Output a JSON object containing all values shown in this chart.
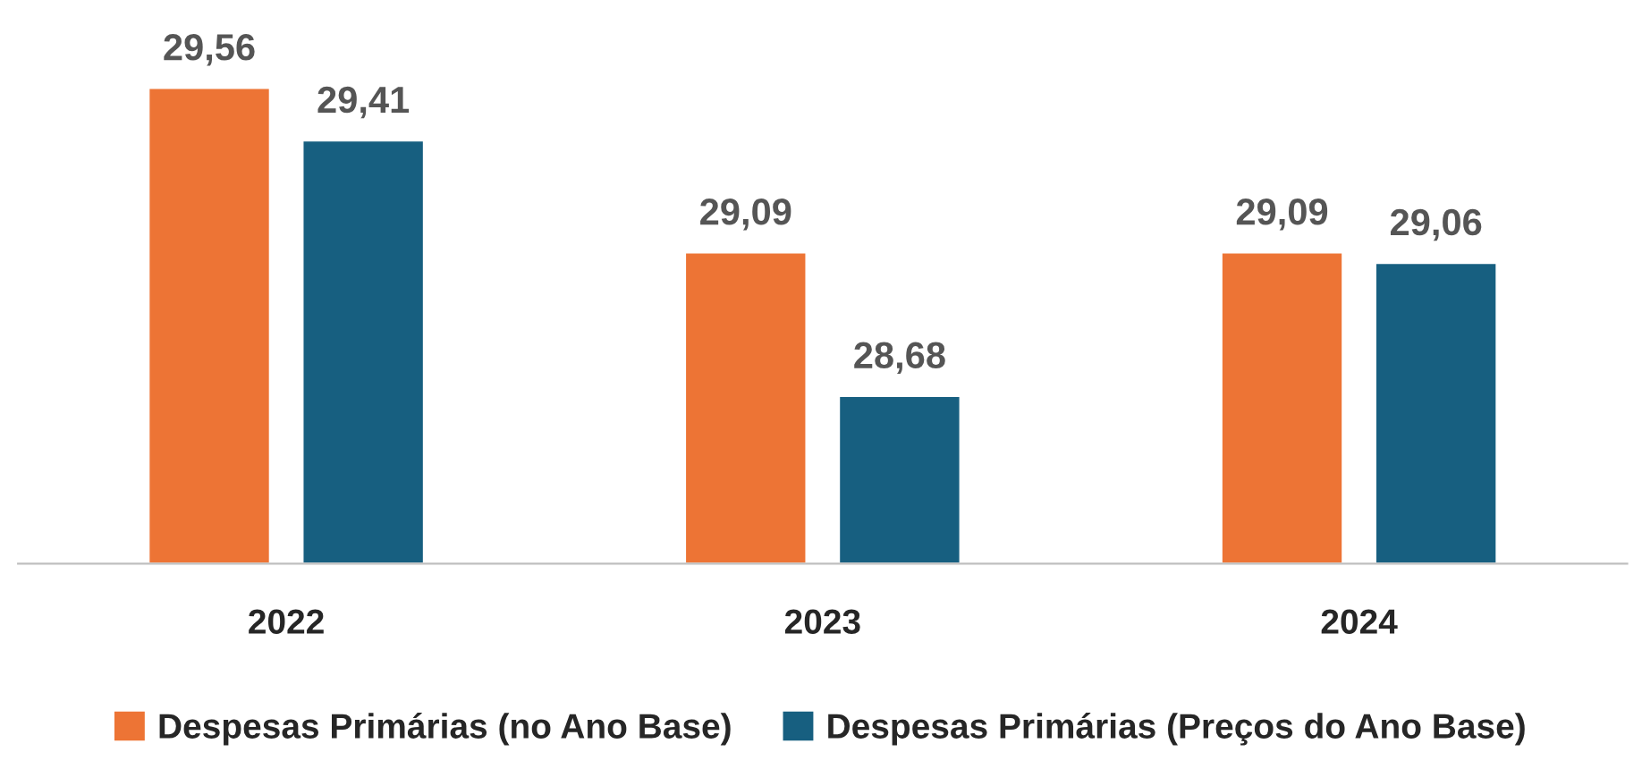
{
  "chart_data": {
    "type": "bar",
    "categories": [
      "2022",
      "2023",
      "2024"
    ],
    "series": [
      {
        "name": "Despesas Primárias (no Ano Base)",
        "color": "#ed7435",
        "values": [
          29.56,
          29.09,
          29.09
        ],
        "value_labels": [
          "29,56",
          "29,09",
          "29,09"
        ]
      },
      {
        "name": "Despesas Primárias (Preços do Ano Base)",
        "color": "#175f80",
        "values": [
          29.41,
          28.68,
          29.06
        ],
        "value_labels": [
          "29,41",
          "28,68",
          "29,06"
        ]
      }
    ],
    "ylim": [
      28.2,
      29.56
    ],
    "tick_labels": "x",
    "grid": false,
    "legend": "bottom"
  }
}
